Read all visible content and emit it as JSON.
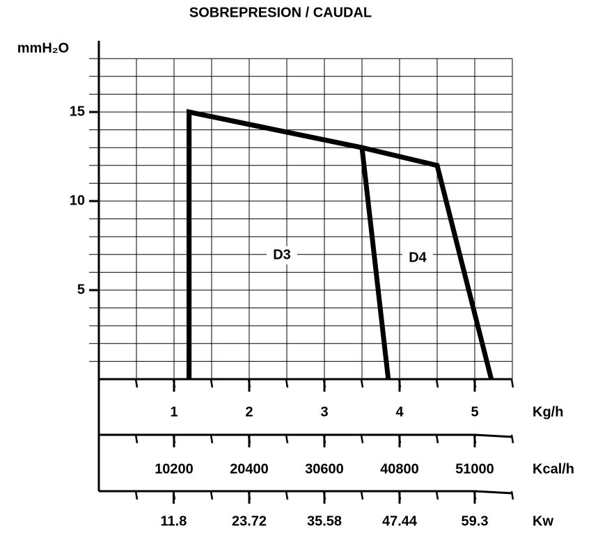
{
  "chart_data": {
    "type": "line",
    "title": "SOBREPRESION / CAUDAL",
    "ylabel": "mmH₂O",
    "xlabel": "Kg/h",
    "xlim": [
      0,
      5.5
    ],
    "ylim": [
      0,
      19
    ],
    "xticks": [
      1,
      2,
      3,
      4,
      5
    ],
    "yticks": [
      5,
      10,
      15
    ],
    "xgrid": [
      0.5,
      1,
      1.5,
      2,
      2.5,
      3,
      3.5,
      4,
      4.5,
      5,
      5.5
    ],
    "ygrid": [
      1,
      2,
      3,
      4,
      5,
      6,
      7,
      8,
      9,
      10,
      11,
      12,
      13,
      14,
      15,
      16,
      17,
      18
    ],
    "grid": true,
    "series": [
      {
        "name": "D3",
        "color": "#000000",
        "x": [
          1.2,
          1.2,
          3.5,
          3.85
        ],
        "values": [
          0,
          15,
          13,
          0
        ]
      },
      {
        "name": "D4",
        "color": "#000000",
        "x": [
          1.2,
          1.2,
          3.5,
          4.5,
          5.22
        ],
        "values": [
          0,
          15,
          13,
          12,
          0
        ]
      }
    ],
    "secondary_axes": [
      {
        "label": "Kcal/h",
        "xlim": [
          0,
          56100
        ],
        "xticks": [
          10200,
          20400,
          30600,
          40800,
          51000
        ]
      },
      {
        "label": "Kw",
        "xlim": [
          0,
          65.23
        ],
        "xticks": [
          11.8,
          23.72,
          35.58,
          47.44,
          59.3
        ]
      }
    ]
  }
}
